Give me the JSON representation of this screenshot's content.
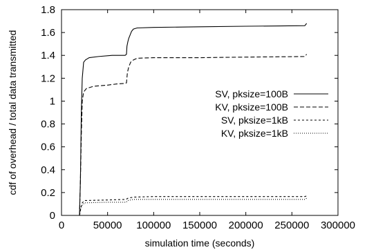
{
  "chart_data": {
    "type": "line",
    "title": "",
    "xlabel": "simulation time (seconds)",
    "ylabel": "cdf of overhead / total data transmitted",
    "xlim": [
      0,
      300000
    ],
    "ylim": [
      0,
      1.8
    ],
    "x_ticks": [
      "0",
      "50000",
      "100000",
      "150000",
      "200000",
      "250000",
      "300000"
    ],
    "y_ticks": [
      "0",
      "0.2",
      "0.4",
      "0.6",
      "0.8",
      "1",
      "1.2",
      "1.4",
      "1.6",
      "1.8"
    ],
    "grid": false,
    "legend_position": "right",
    "series": [
      {
        "name": "SV, pksize=100B",
        "dash": "solid",
        "points": [
          [
            19500,
            0
          ],
          [
            20500,
            0.3
          ],
          [
            21500,
            0.9
          ],
          [
            22500,
            1.2
          ],
          [
            24000,
            1.34
          ],
          [
            26000,
            1.36
          ],
          [
            30000,
            1.38
          ],
          [
            40000,
            1.39
          ],
          [
            55000,
            1.4
          ],
          [
            69000,
            1.4
          ],
          [
            70500,
            1.41
          ],
          [
            71000,
            1.48
          ],
          [
            72000,
            1.52
          ],
          [
            73000,
            1.55
          ],
          [
            74500,
            1.58
          ],
          [
            76000,
            1.61
          ],
          [
            78000,
            1.63
          ],
          [
            82000,
            1.64
          ],
          [
            100000,
            1.645
          ],
          [
            150000,
            1.65
          ],
          [
            200000,
            1.655
          ],
          [
            264000,
            1.66
          ],
          [
            266000,
            1.68
          ]
        ]
      },
      {
        "name": "KV, pksize=100B",
        "dash": "dashed",
        "points": [
          [
            19500,
            0
          ],
          [
            20500,
            0.3
          ],
          [
            21500,
            0.7
          ],
          [
            22500,
            1.0
          ],
          [
            24000,
            1.08
          ],
          [
            27000,
            1.11
          ],
          [
            35000,
            1.13
          ],
          [
            50000,
            1.14
          ],
          [
            60000,
            1.15
          ],
          [
            69000,
            1.155
          ],
          [
            70500,
            1.16
          ],
          [
            71500,
            1.25
          ],
          [
            73000,
            1.3
          ],
          [
            75000,
            1.34
          ],
          [
            78000,
            1.36
          ],
          [
            82000,
            1.375
          ],
          [
            100000,
            1.38
          ],
          [
            150000,
            1.38
          ],
          [
            200000,
            1.385
          ],
          [
            264000,
            1.39
          ],
          [
            266000,
            1.41
          ]
        ]
      },
      {
        "name": "SV, pksize=1kB",
        "dash": "short-dashed",
        "points": [
          [
            19500,
            0
          ],
          [
            21000,
            0.07
          ],
          [
            22500,
            0.11
          ],
          [
            25000,
            0.13
          ],
          [
            50000,
            0.135
          ],
          [
            70000,
            0.14
          ],
          [
            72000,
            0.15
          ],
          [
            78000,
            0.16
          ],
          [
            100000,
            0.165
          ],
          [
            200000,
            0.165
          ],
          [
            264000,
            0.165
          ],
          [
            266000,
            0.17
          ]
        ]
      },
      {
        "name": "KV, pksize=1kB",
        "dash": "dotted",
        "points": [
          [
            19500,
            0
          ],
          [
            21000,
            0.06
          ],
          [
            22500,
            0.09
          ],
          [
            25000,
            0.11
          ],
          [
            50000,
            0.115
          ],
          [
            70000,
            0.115
          ],
          [
            72000,
            0.13
          ],
          [
            78000,
            0.14
          ],
          [
            100000,
            0.14
          ],
          [
            200000,
            0.14
          ],
          [
            264000,
            0.14
          ],
          [
            266000,
            0.15
          ]
        ]
      }
    ]
  }
}
